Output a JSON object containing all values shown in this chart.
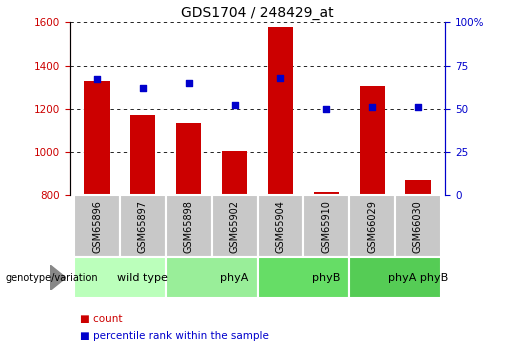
{
  "title": "GDS1704 / 248429_at",
  "samples": [
    "GSM65896",
    "GSM65897",
    "GSM65898",
    "GSM65902",
    "GSM65904",
    "GSM65910",
    "GSM66029",
    "GSM66030"
  ],
  "counts": [
    1330,
    1170,
    1135,
    1005,
    1580,
    815,
    1305,
    870
  ],
  "percentile_ranks": [
    67,
    62,
    65,
    52,
    68,
    50,
    51,
    51
  ],
  "ylim_left": [
    800,
    1600
  ],
  "ylim_right": [
    0,
    100
  ],
  "yticks_left": [
    800,
    1000,
    1200,
    1400,
    1600
  ],
  "yticks_right": [
    0,
    25,
    50,
    75,
    100
  ],
  "bar_color": "#cc0000",
  "dot_color": "#0000cc",
  "groups": [
    {
      "label": "wild type",
      "start": 0,
      "end": 2,
      "color": "#bbffbb"
    },
    {
      "label": "phyA",
      "start": 2,
      "end": 4,
      "color": "#99ee99"
    },
    {
      "label": "phyB",
      "start": 4,
      "end": 6,
      "color": "#66dd66"
    },
    {
      "label": "phyA phyB",
      "start": 6,
      "end": 8,
      "color": "#55cc55"
    }
  ],
  "bar_color_red": "#cc0000",
  "dot_color_blue": "#0000cc",
  "left_tick_color": "#cc0000",
  "right_tick_color": "#0000cc",
  "sample_box_color": "#c8c8c8",
  "legend_items": [
    {
      "label": "count",
      "color": "#cc0000"
    },
    {
      "label": "percentile rank within the sample",
      "color": "#0000cc"
    }
  ],
  "genotype_label": "genotype/variation"
}
